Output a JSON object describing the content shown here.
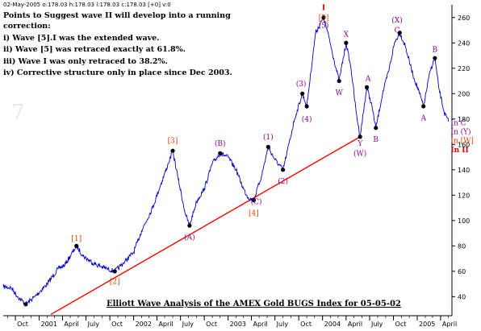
{
  "header_text": "02-May-2005  o:178.03 h:178.03 l:178.03 c:178.03 [+0] v:0",
  "notes": [
    "Points to Suggest wave II will develop into a running",
    "correction:",
    "i) Wave [5].I was the extended wave.",
    "ii) Wave [5] was retraced exactly at 61.8%.",
    "iii) Wave I was only retraced to 38.2%.",
    "iv) Corrective structure only in place since Dec 2003."
  ],
  "colors": {
    "price": "#0000cc",
    "trendline": "#ff0000",
    "label_orange": "#e04000",
    "label_purple": "#8b008b",
    "label_red": "#cc0000",
    "pivot": "#000000"
  },
  "chart_data": {
    "type": "line",
    "title": "Elliott Wave Analysis of the AMEX Gold BUGS Index for 05-05-02",
    "xlabel": "",
    "ylabel": "",
    "x_range": [
      "2000-08-15",
      "2005-05-15"
    ],
    "ylim": [
      25,
      270
    ],
    "y_ticks": [
      40,
      60,
      80,
      100,
      120,
      140,
      160,
      180,
      200,
      220,
      240,
      260
    ],
    "x_ticks": [
      {
        "date": "2000-10-01",
        "label": "Oct"
      },
      {
        "date": "2001-01-01",
        "label": "2001"
      },
      {
        "date": "2001-04-01",
        "label": "April"
      },
      {
        "date": "2001-07-01",
        "label": "July"
      },
      {
        "date": "2001-10-01",
        "label": "Oct"
      },
      {
        "date": "2002-01-01",
        "label": "2002"
      },
      {
        "date": "2002-04-01",
        "label": "April"
      },
      {
        "date": "2002-07-01",
        "label": "July"
      },
      {
        "date": "2002-10-01",
        "label": "Oct"
      },
      {
        "date": "2003-01-01",
        "label": "2003"
      },
      {
        "date": "2003-04-01",
        "label": "April"
      },
      {
        "date": "2003-07-01",
        "label": "July"
      },
      {
        "date": "2003-10-01",
        "label": "Oct"
      },
      {
        "date": "2004-01-01",
        "label": "2004"
      },
      {
        "date": "2004-04-01",
        "label": "April"
      },
      {
        "date": "2004-07-01",
        "label": "July"
      },
      {
        "date": "2004-10-01",
        "label": "Oct"
      },
      {
        "date": "2005-01-01",
        "label": "2005"
      },
      {
        "date": "2005-04-01",
        "label": "April"
      }
    ],
    "grid": false,
    "series": [
      {
        "name": "",
        "points": [
          [
            "2000-08-15",
            48
          ],
          [
            "2000-09-15",
            47
          ],
          [
            "2000-10-10",
            40
          ],
          [
            "2000-11-10",
            34
          ],
          [
            "2000-12-15",
            40
          ],
          [
            "2001-02-01",
            50
          ],
          [
            "2001-03-15",
            62
          ],
          [
            "2001-04-10",
            65
          ],
          [
            "2001-05-25",
            80
          ],
          [
            "2001-06-20",
            72
          ],
          [
            "2001-08-01",
            66
          ],
          [
            "2001-09-20",
            62
          ],
          [
            "2001-10-20",
            60
          ],
          [
            "2001-11-20",
            66
          ],
          [
            "2002-01-01",
            75
          ],
          [
            "2002-02-01",
            92
          ],
          [
            "2002-03-15",
            110
          ],
          [
            "2002-04-15",
            128
          ],
          [
            "2002-05-15",
            145
          ],
          [
            "2002-06-01",
            155
          ],
          [
            "2002-06-20",
            135
          ],
          [
            "2002-07-20",
            105
          ],
          [
            "2002-08-05",
            96
          ],
          [
            "2002-09-01",
            115
          ],
          [
            "2002-10-01",
            125
          ],
          [
            "2002-11-01",
            145
          ],
          [
            "2002-12-01",
            153
          ],
          [
            "2003-01-01",
            150
          ],
          [
            "2003-02-01",
            140
          ],
          [
            "2003-03-01",
            125
          ],
          [
            "2003-03-20",
            118
          ],
          [
            "2003-04-10",
            116
          ],
          [
            "2003-05-10",
            135
          ],
          [
            "2003-06-05",
            158
          ],
          [
            "2003-07-01",
            148
          ],
          [
            "2003-08-01",
            140
          ],
          [
            "2003-08-15",
            152
          ],
          [
            "2003-09-15",
            180
          ],
          [
            "2003-10-15",
            200
          ],
          [
            "2003-11-01",
            190
          ],
          [
            "2003-12-05",
            248
          ],
          [
            "2004-01-05",
            260
          ],
          [
            "2004-01-25",
            245
          ],
          [
            "2004-02-15",
            226
          ],
          [
            "2004-03-05",
            210
          ],
          [
            "2004-04-01",
            240
          ],
          [
            "2004-04-20",
            220
          ],
          [
            "2004-05-10",
            185
          ],
          [
            "2004-05-25",
            166
          ],
          [
            "2004-06-20",
            205
          ],
          [
            "2004-07-10",
            190
          ],
          [
            "2004-07-25",
            173
          ],
          [
            "2004-08-20",
            200
          ],
          [
            "2004-09-15",
            220
          ],
          [
            "2004-10-05",
            240
          ],
          [
            "2004-10-25",
            248
          ],
          [
            "2004-11-15",
            238
          ],
          [
            "2004-12-15",
            215
          ],
          [
            "2005-01-10",
            200
          ],
          [
            "2005-01-25",
            190
          ],
          [
            "2005-02-20",
            218
          ],
          [
            "2005-03-10",
            228
          ],
          [
            "2005-03-25",
            205
          ],
          [
            "2005-04-15",
            185
          ],
          [
            "2005-05-02",
            178
          ]
        ]
      }
    ],
    "trendline": [
      [
        "2001-02-15",
        26
      ],
      [
        "2004-05-25",
        166
      ]
    ],
    "pivots": [
      [
        "2000-11-10",
        34
      ],
      [
        "2001-05-25",
        80
      ],
      [
        "2001-10-20",
        60
      ],
      [
        "2002-06-01",
        155
      ],
      [
        "2002-08-05",
        96
      ],
      [
        "2002-12-01",
        153
      ],
      [
        "2003-04-10",
        116
      ],
      [
        "2003-06-05",
        158
      ],
      [
        "2003-08-01",
        140
      ],
      [
        "2003-10-15",
        200
      ],
      [
        "2003-11-01",
        190
      ],
      [
        "2004-01-05",
        260
      ],
      [
        "2004-03-05",
        210
      ],
      [
        "2004-04-01",
        240
      ],
      [
        "2004-05-25",
        166
      ],
      [
        "2004-06-20",
        205
      ],
      [
        "2004-07-25",
        173
      ],
      [
        "2004-10-25",
        248
      ],
      [
        "2005-01-25",
        190
      ],
      [
        "2005-03-10",
        228
      ]
    ],
    "wave_labels": [
      {
        "text": "[1]",
        "x": "2001-05-25",
        "y": 84,
        "color": "label_orange"
      },
      {
        "text": "[2]",
        "x": "2001-10-20",
        "y": 50,
        "color": "label_orange"
      },
      {
        "text": "[3]",
        "x": "2002-06-01",
        "y": 161,
        "color": "label_orange"
      },
      {
        "text": "[4]",
        "x": "2003-04-10",
        "y": 104,
        "color": "label_orange"
      },
      {
        "text": "(A)",
        "x": "2002-08-05",
        "y": 85,
        "color": "label_purple"
      },
      {
        "text": "(B)",
        "x": "2002-12-01",
        "y": 159,
        "color": "label_purple"
      },
      {
        "text": "(C)",
        "x": "2003-04-20",
        "y": 113,
        "color": "label_purple"
      },
      {
        "text": "(1)",
        "x": "2003-06-05",
        "y": 164,
        "color": "label_purple"
      },
      {
        "text": "(2)",
        "x": "2003-08-01",
        "y": 129,
        "color": "label_purple"
      },
      {
        "text": "(3)",
        "x": "2003-10-10",
        "y": 206,
        "color": "label_purple"
      },
      {
        "text": "(4)",
        "x": "2003-11-01",
        "y": 178,
        "color": "label_purple"
      },
      {
        "text": "(5)",
        "x": "2004-01-05",
        "y": 252,
        "color": "label_purple"
      },
      {
        "text": "[5]",
        "x": "2004-01-05",
        "y": 258,
        "color": "label_orange"
      },
      {
        "text": "I",
        "x": "2004-01-05",
        "y": 266,
        "color": "label_red"
      },
      {
        "text": "W",
        "x": "2004-03-05",
        "y": 199,
        "color": "label_purple"
      },
      {
        "text": "X",
        "x": "2004-04-01",
        "y": 245,
        "color": "label_purple"
      },
      {
        "text": "Y",
        "x": "2004-05-25",
        "y": 159,
        "color": "label_purple"
      },
      {
        "text": "(W)",
        "x": "2004-05-25",
        "y": 151,
        "color": "label_purple"
      },
      {
        "text": "A",
        "x": "2004-06-25",
        "y": 210,
        "color": "label_purple"
      },
      {
        "text": "B",
        "x": "2004-07-25",
        "y": 162,
        "color": "label_purple"
      },
      {
        "text": "(X)",
        "x": "2004-10-15",
        "y": 256,
        "color": "label_purple"
      },
      {
        "text": "C",
        "x": "2004-10-15",
        "y": 248,
        "color": "label_purple"
      },
      {
        "text": "A",
        "x": "2005-01-25",
        "y": 179,
        "color": "label_purple"
      },
      {
        "text": "B",
        "x": "2005-03-10",
        "y": 233,
        "color": "label_purple"
      },
      {
        "text": "In C",
        "x": "2005-05-10",
        "y": 175,
        "color": "label_purple"
      },
      {
        "text": "In (Y)",
        "x": "2005-05-10",
        "y": 168,
        "color": "label_purple"
      },
      {
        "text": "In [W]",
        "x": "2005-05-10",
        "y": 161,
        "color": "label_orange"
      },
      {
        "text": "In II",
        "x": "2005-05-10",
        "y": 154,
        "color": "label_red"
      }
    ]
  }
}
